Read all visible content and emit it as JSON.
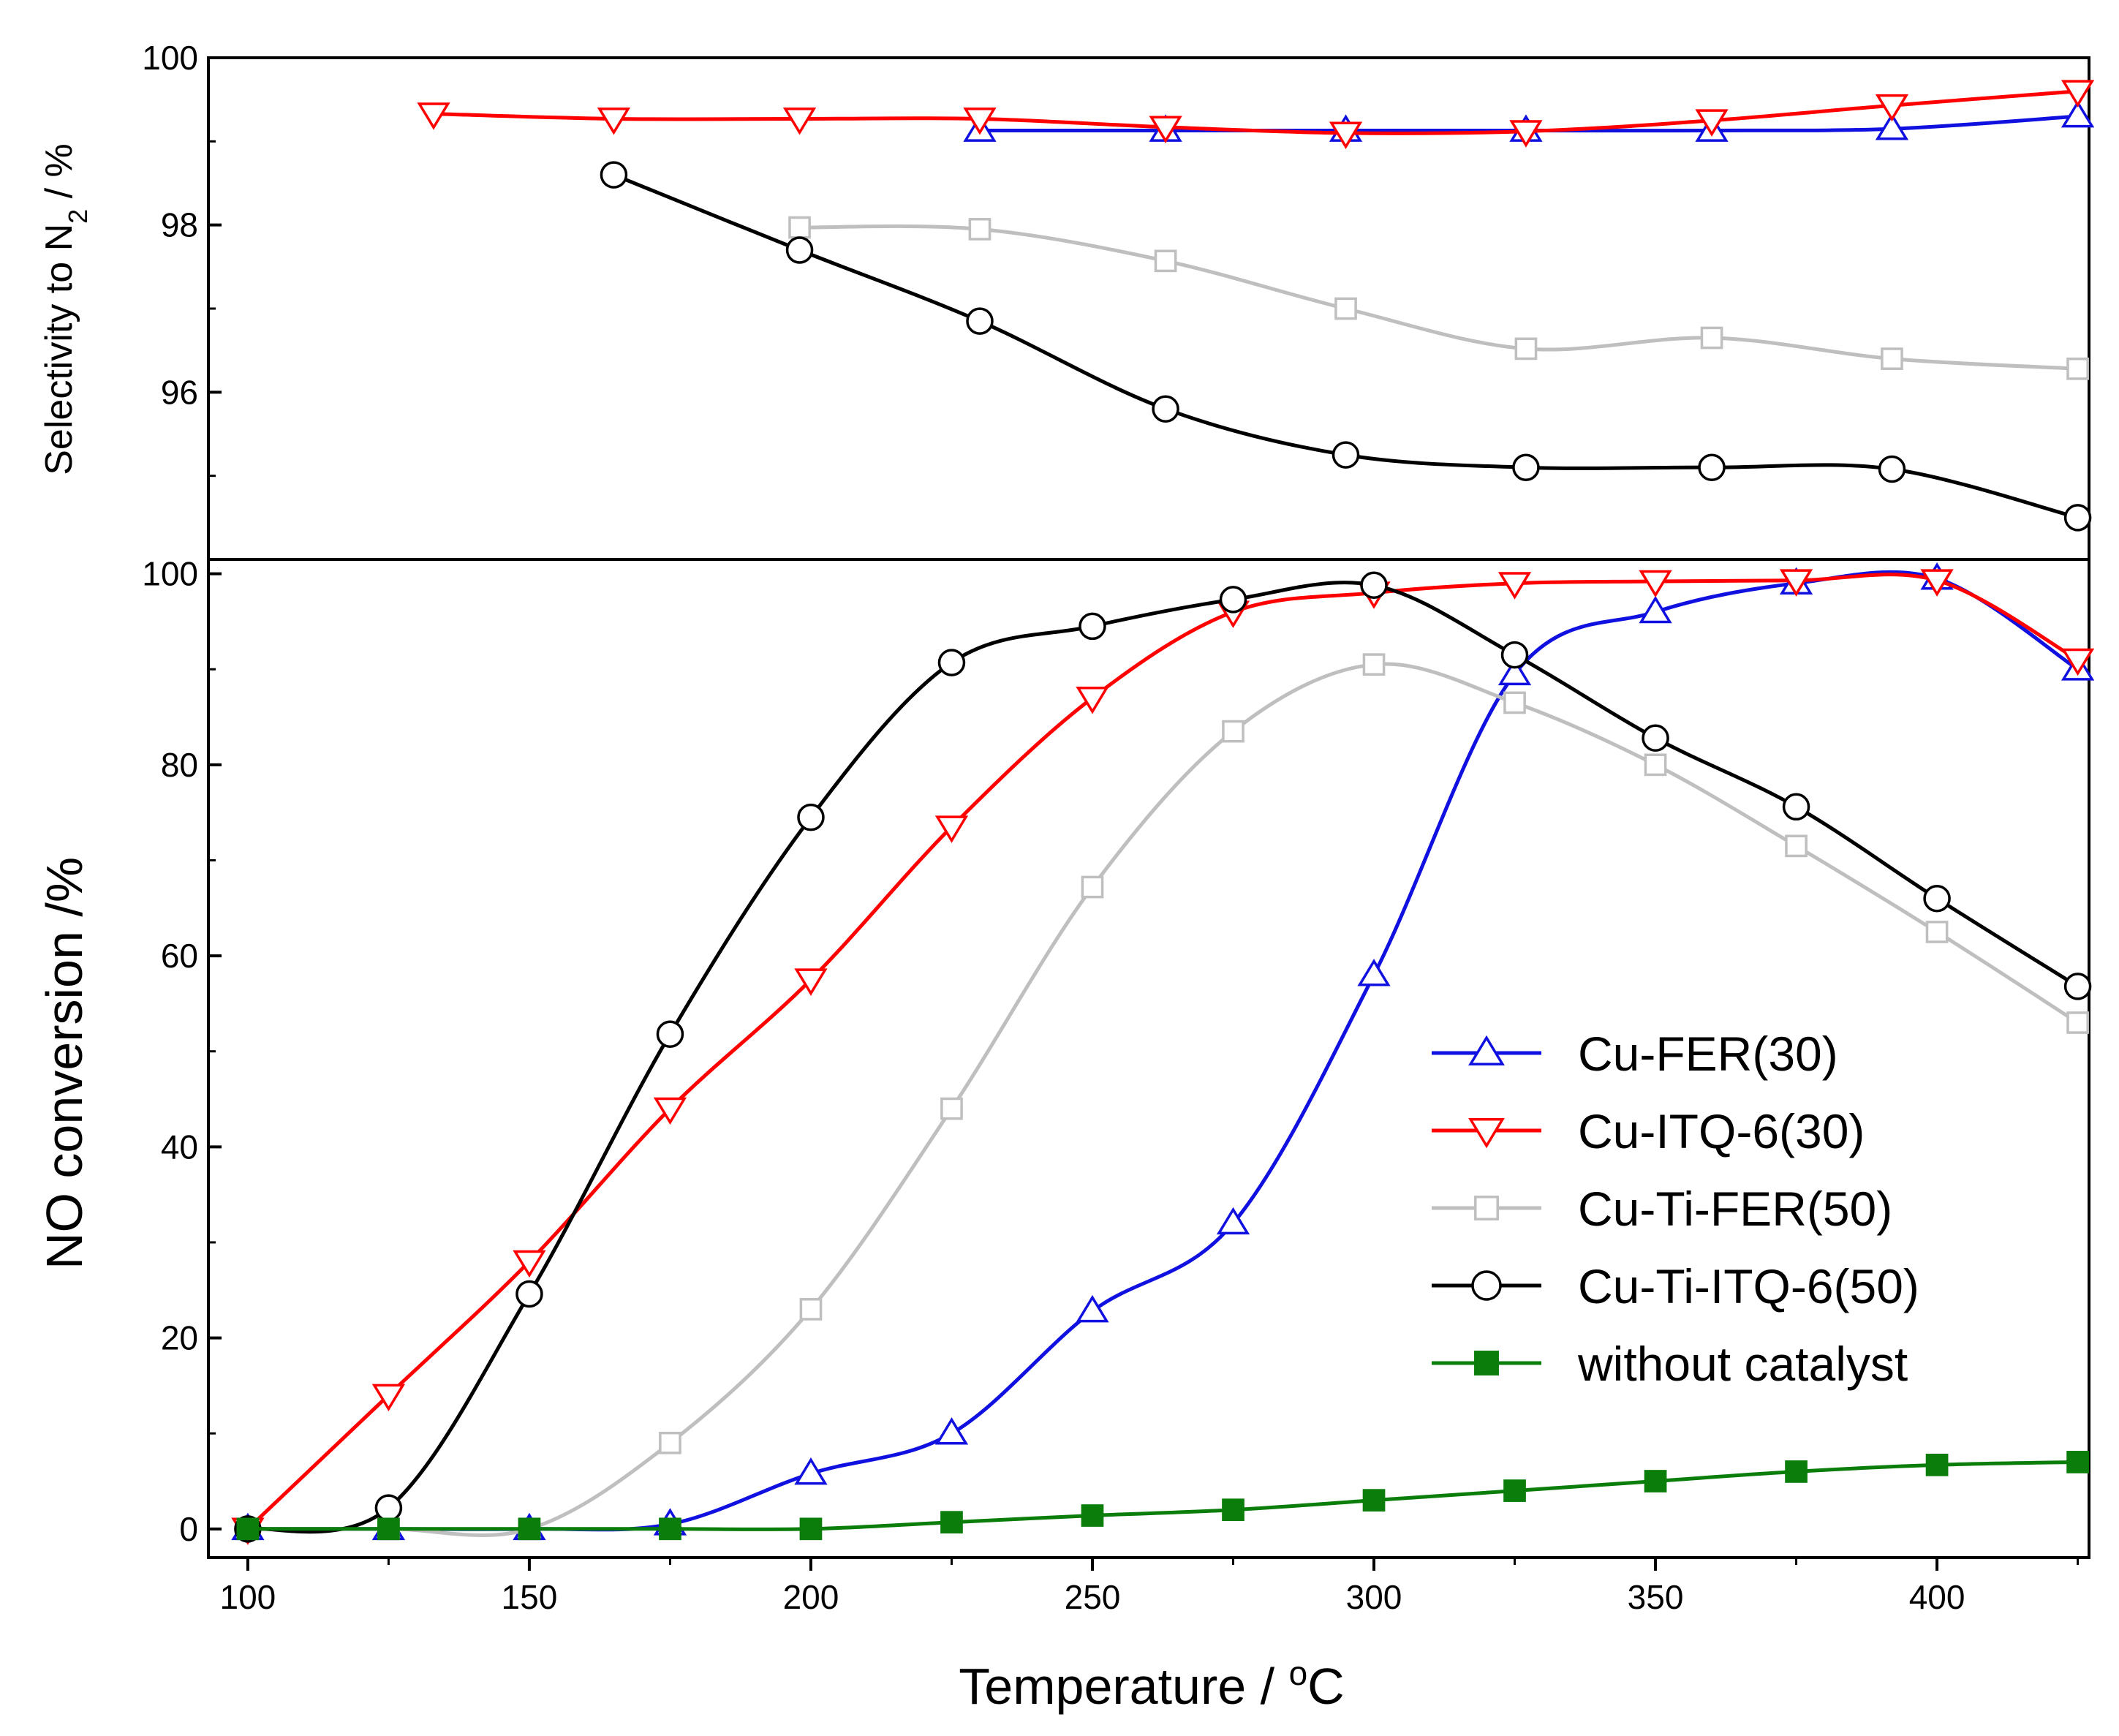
{
  "chart_data": [
    {
      "type": "line",
      "panel": "top",
      "ylabel": "Selectivity to N",
      "ylabel_sub": "2",
      "ylabel_tail": " / %",
      "xlim": [
        93,
        427
      ],
      "ylim": [
        94.0,
        100.0
      ],
      "yticks": [
        96,
        98,
        100
      ],
      "ytick_labels": [
        "96",
        "98",
        "100"
      ],
      "series": [
        {
          "name": "Cu-FER(30)",
          "color": "#1010e0",
          "marker": "triangle-up",
          "fill": "none",
          "x": [
            230,
            263,
            295,
            327,
            360,
            392,
            425
          ],
          "y": [
            99.13,
            99.13,
            99.13,
            99.13,
            99.13,
            99.15,
            99.3
          ]
        },
        {
          "name": "Cu-ITQ-6(30)",
          "color": "#ff0000",
          "marker": "triangle-down",
          "fill": "none",
          "x": [
            133,
            165,
            198,
            230,
            263,
            295,
            327,
            360,
            392,
            425
          ],
          "y": [
            99.33,
            99.27,
            99.27,
            99.27,
            99.17,
            99.1,
            99.12,
            99.25,
            99.43,
            99.6
          ]
        },
        {
          "name": "Cu-Ti-FER(50)",
          "color": "#bfbfbf",
          "marker": "square",
          "fill": "none",
          "x": [
            198,
            230,
            263,
            295,
            327,
            360,
            392,
            425
          ],
          "y": [
            97.97,
            97.95,
            97.57,
            97.0,
            96.52,
            96.65,
            96.4,
            96.28
          ]
        },
        {
          "name": "Cu-Ti-ITQ-6(50)",
          "color": "#000000",
          "marker": "circle",
          "fill": "none",
          "x": [
            165,
            198,
            230,
            263,
            295,
            327,
            360,
            392,
            425
          ],
          "y": [
            98.6,
            97.7,
            96.85,
            95.8,
            95.25,
            95.1,
            95.1,
            95.08,
            94.5
          ]
        }
      ]
    },
    {
      "type": "line",
      "panel": "bottom",
      "xlabel": "Temperature / ",
      "xlabel_sup": "o",
      "xlabel_tail": "C",
      "ylabel": "NO conversion /%",
      "xlim": [
        93,
        427
      ],
      "ylim": [
        -3,
        101.5
      ],
      "xticks": [
        100,
        150,
        200,
        250,
        300,
        350,
        400
      ],
      "xtick_labels": [
        "100",
        "150",
        "200",
        "250",
        "300",
        "350",
        "400"
      ],
      "yticks": [
        0,
        20,
        40,
        60,
        80,
        100
      ],
      "ytick_labels": [
        "0",
        "20",
        "40",
        "60",
        "80",
        "100"
      ],
      "series": [
        {
          "name": "Cu-FER(30)",
          "color": "#1010e0",
          "marker": "triangle-up",
          "fill": "none",
          "x": [
            100,
            125,
            150,
            175,
            200,
            225,
            250,
            275,
            300,
            325,
            350,
            375,
            400,
            425
          ],
          "y": [
            0,
            0,
            0,
            0.5,
            5.8,
            10,
            22.8,
            32,
            58,
            89.5,
            96,
            99,
            99.5,
            90
          ]
        },
        {
          "name": "Cu-ITQ-6(30)",
          "color": "#ff0000",
          "marker": "triangle-down",
          "fill": "none",
          "x": [
            100,
            125,
            150,
            175,
            200,
            225,
            250,
            275,
            300,
            325,
            350,
            375,
            400,
            425
          ],
          "y": [
            0,
            14,
            28,
            44,
            57.5,
            73.5,
            87,
            96,
            98,
            99,
            99.2,
            99.3,
            99.3,
            91
          ]
        },
        {
          "name": "Cu-Ti-FER(50)",
          "color": "#bfbfbf",
          "marker": "square",
          "fill": "none",
          "x": [
            100,
            125,
            150,
            175,
            200,
            225,
            250,
            275,
            300,
            325,
            350,
            375,
            400,
            425
          ],
          "y": [
            0,
            0,
            0,
            9,
            23,
            44,
            67.2,
            83.5,
            90.5,
            86.5,
            80,
            71.5,
            62.5,
            53
          ]
        },
        {
          "name": "Cu-Ti-ITQ-6(50)",
          "color": "#000000",
          "marker": "circle",
          "fill": "none",
          "x": [
            100,
            125,
            150,
            175,
            200,
            225,
            250,
            275,
            300,
            325,
            350,
            375,
            400,
            425
          ],
          "y": [
            0,
            2.2,
            24.6,
            51.8,
            74.5,
            90.7,
            94.5,
            97.3,
            98.8,
            91.5,
            82.8,
            75.6,
            66,
            56.8
          ]
        },
        {
          "name": "without catalyst",
          "color": "#0a7d0a",
          "marker": "square",
          "fill": "solid",
          "x": [
            100,
            125,
            150,
            175,
            200,
            225,
            250,
            275,
            300,
            325,
            350,
            375,
            400,
            425
          ],
          "y": [
            0,
            0,
            0,
            0,
            0,
            0.7,
            1.4,
            2.0,
            3.0,
            4.0,
            5.0,
            6.0,
            6.7,
            7.0
          ]
        }
      ],
      "legend": {
        "position": "lower-right"
      }
    }
  ]
}
